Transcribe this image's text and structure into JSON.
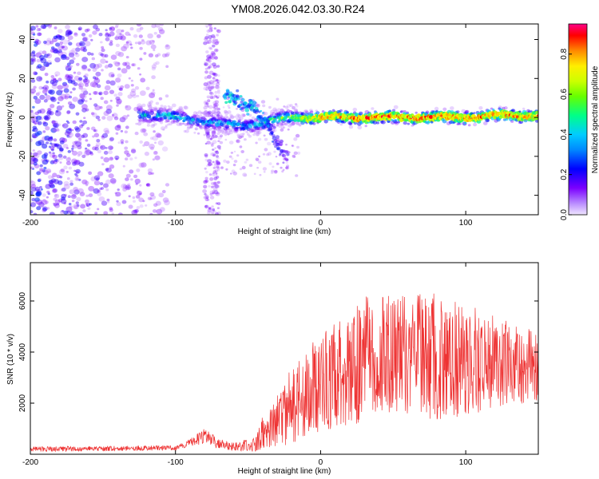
{
  "title": "YM08.2026.042.03.30.R24",
  "colors": {
    "snr_line": "#ee3333",
    "axis": "#000000",
    "spec_low": "#7b00ff",
    "spec_high": "#ff0000"
  },
  "chart_data": [
    {
      "type": "heatmap",
      "name": "spectrogram",
      "xlabel": "Height of straight line (km)",
      "ylabel": "Frequency (Hz)",
      "xlim": [
        -200,
        150
      ],
      "ylim": [
        -50,
        48
      ],
      "xticks": [
        -200,
        -100,
        0,
        100
      ],
      "yticks": [
        -40,
        -20,
        0,
        20,
        40
      ],
      "colorbar": {
        "label": "Normalized spectral amplitude",
        "range": [
          0,
          0.95
        ],
        "ticks": [
          "0.0",
          "0.2",
          "0.4",
          "0.6",
          "0.8"
        ],
        "tick_values": [
          0,
          0.2,
          0.4,
          0.6,
          0.8
        ],
        "colormap": [
          "#f0e6ff",
          "#7b00ff",
          "#0000ff",
          "#00ccff",
          "#00ff66",
          "#ccff00",
          "#ffee00",
          "#ff8800",
          "#ff0000",
          "#ff0088"
        ]
      },
      "ridge": {
        "x": [
          -125,
          -100,
          -80,
          -65,
          -50,
          -35,
          -20,
          0,
          20,
          40,
          60,
          80,
          100,
          120,
          150
        ],
        "freq": [
          2,
          0,
          -2,
          -4,
          -4,
          -2,
          0,
          0,
          0,
          0,
          0,
          0,
          0,
          1,
          1
        ],
        "amplitude": [
          0.35,
          0.35,
          0.3,
          0.35,
          0.3,
          0.4,
          0.5,
          0.7,
          0.75,
          0.8,
          0.78,
          0.8,
          0.75,
          0.78,
          0.7
        ]
      },
      "secondary_branch": {
        "x": [
          -65,
          -55,
          -45,
          -35,
          -25
        ],
        "freq": [
          12,
          8,
          4,
          -6,
          -20
        ],
        "amplitude": [
          0.35,
          0.3,
          0.3,
          0.25,
          0.15
        ]
      }
    },
    {
      "type": "line",
      "name": "snr",
      "xlabel": "Height of straight line (km)",
      "ylabel": "SNR (10 * v/v)",
      "xlim": [
        -200,
        150
      ],
      "ylim": [
        0,
        7500
      ],
      "xticks": [
        -200,
        -100,
        0,
        100
      ],
      "yticks": [
        2000,
        4000,
        6000
      ],
      "envelope": {
        "x": [
          -200,
          -100,
          -90,
          -80,
          -70,
          -60,
          -45,
          -40,
          -30,
          -20,
          -10,
          0,
          10,
          20,
          30,
          40,
          60,
          80,
          100,
          120,
          140,
          150
        ],
        "mean": [
          200,
          250,
          450,
          700,
          400,
          300,
          400,
          800,
          1300,
          1900,
          2400,
          2800,
          3100,
          3400,
          3700,
          3900,
          3900,
          3800,
          3700,
          3600,
          3500,
          3400
        ],
        "amplitude": [
          100,
          100,
          150,
          300,
          200,
          150,
          300,
          700,
          1000,
          1500,
          1700,
          1900,
          2100,
          2300,
          2500,
          2500,
          2400,
          2500,
          2200,
          1800,
          1500,
          1400
        ]
      }
    }
  ]
}
